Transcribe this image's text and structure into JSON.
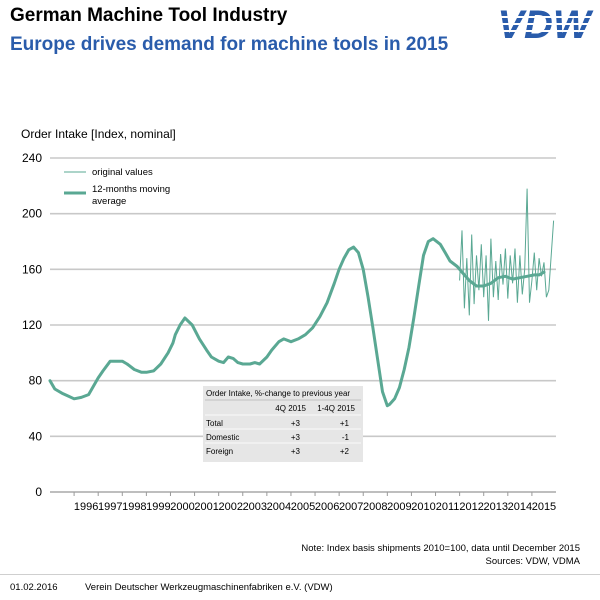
{
  "header": {
    "title": "German Machine Tool Industry",
    "subtitle": "Europe drives demand for machine tools in 2015",
    "logo_text": "VDW",
    "logo_color": "#2a5cab"
  },
  "footer": {
    "note1": "Note: Index basis shipments 2010=100, data until December 2015",
    "note2": "Sources: VDW, VDMA",
    "date": "01.02.2016",
    "org": "Verein Deutscher Werkzeugmaschinenfabriken e.V. (VDW)"
  },
  "chart_data": {
    "type": "line",
    "title": "",
    "ylabel": "Order Intake  [Index, nominal]",
    "xlabel": "",
    "ylim": [
      0,
      240
    ],
    "yticks": [
      "0",
      "40",
      "80",
      "120",
      "160",
      "200",
      "240"
    ],
    "x_tick_labels": [
      "1996",
      "1997",
      "1998",
      "1999",
      "2000",
      "2001",
      "2002",
      "2003",
      "2004",
      "2005",
      "2006",
      "2007",
      "2008",
      "2009",
      "2010",
      "2011",
      "2012",
      "2013",
      "2014",
      "2015"
    ],
    "xlim": [
      1995.0,
      2016.0
    ],
    "grid": true,
    "color": "#5aa893",
    "legend": {
      "placement": "top-left",
      "entries": [
        "original values",
        "12-months moving average"
      ]
    },
    "series": [
      {
        "name": "12-months moving average",
        "x": [
          1995.0,
          1995.2,
          1995.5,
          1995.75,
          1996.0,
          1996.3,
          1996.6,
          1996.8,
          1997.0,
          1997.2,
          1997.5,
          1997.7,
          1998.0,
          1998.2,
          1998.5,
          1998.8,
          1999.0,
          1999.3,
          1999.6,
          1999.9,
          2000.1,
          2000.2,
          2000.4,
          2000.6,
          2000.9,
          2001.2,
          2001.5,
          2001.7,
          2001.9,
          2002.0,
          2002.2,
          2002.4,
          2002.6,
          2002.8,
          2003.0,
          2003.3,
          2003.5,
          2003.7,
          2004.0,
          2004.2,
          2004.5,
          2004.7,
          2005.0,
          2005.3,
          2005.6,
          2005.9,
          2006.2,
          2006.5,
          2006.8,
          2007.0,
          2007.2,
          2007.4,
          2007.6,
          2007.8,
          2008.0,
          2008.2,
          2008.4,
          2008.6,
          2008.8,
          2009.0,
          2009.1,
          2009.3,
          2009.5,
          2009.7,
          2009.9,
          2010.1,
          2010.3,
          2010.5,
          2010.7,
          2010.9,
          2011.2,
          2011.4,
          2011.6,
          2011.9,
          2012.1,
          2012.4,
          2012.7,
          2013.0,
          2013.3,
          2013.6,
          2013.9,
          2014.2,
          2014.5,
          2014.8,
          2015.1,
          2015.3,
          2015.5
        ],
        "values": [
          80,
          74,
          71,
          69,
          67,
          68,
          70,
          76,
          82,
          87,
          94,
          94,
          94,
          92,
          88,
          86,
          86,
          87,
          92,
          100,
          107,
          113,
          120,
          125,
          120,
          110,
          102,
          97,
          95,
          94,
          93,
          97,
          96,
          93,
          92,
          92,
          93,
          92,
          97,
          102,
          108,
          110,
          108,
          110,
          113,
          118,
          126,
          136,
          150,
          160,
          168,
          174,
          176,
          172,
          160,
          140,
          118,
          95,
          72,
          62,
          63,
          67,
          75,
          88,
          104,
          125,
          148,
          170,
          180,
          182,
          178,
          172,
          166,
          162,
          158,
          152,
          148,
          148,
          150,
          154,
          155,
          153,
          154,
          155,
          156,
          156,
          158
        ]
      },
      {
        "name": "original values",
        "x": [
          2012.0,
          2012.1,
          2012.2,
          2012.3,
          2012.4,
          2012.5,
          2012.6,
          2012.7,
          2012.8,
          2012.9,
          2013.0,
          2013.1,
          2013.2,
          2013.3,
          2013.4,
          2013.5,
          2013.6,
          2013.7,
          2013.8,
          2013.9,
          2014.0,
          2014.1,
          2014.2,
          2014.3,
          2014.4,
          2014.5,
          2014.6,
          2014.7,
          2014.8,
          2014.9,
          2015.0,
          2015.1,
          2015.2,
          2015.3,
          2015.4,
          2015.5,
          2015.6,
          2015.7,
          2015.8,
          2015.9
        ],
        "values": [
          152,
          188,
          132,
          168,
          127,
          185,
          135,
          170,
          145,
          178,
          140,
          170,
          123,
          182,
          140,
          166,
          138,
          171,
          149,
          175,
          139,
          170,
          150,
          175,
          136,
          170,
          142,
          160,
          218,
          136,
          152,
          172,
          145,
          168,
          155,
          165,
          140,
          145,
          170,
          195
        ]
      }
    ]
  },
  "table": {
    "title": "Order Intake, %-change to previous year",
    "columns": [
      "4Q 2015",
      "1-4Q 2015"
    ],
    "rows": [
      {
        "label": "Total",
        "v1": "+3",
        "v2": "+1"
      },
      {
        "label": "Domestic",
        "v1": "+3",
        "v2": "-1"
      },
      {
        "label": "Foreign",
        "v1": "+3",
        "v2": "+2"
      }
    ]
  }
}
